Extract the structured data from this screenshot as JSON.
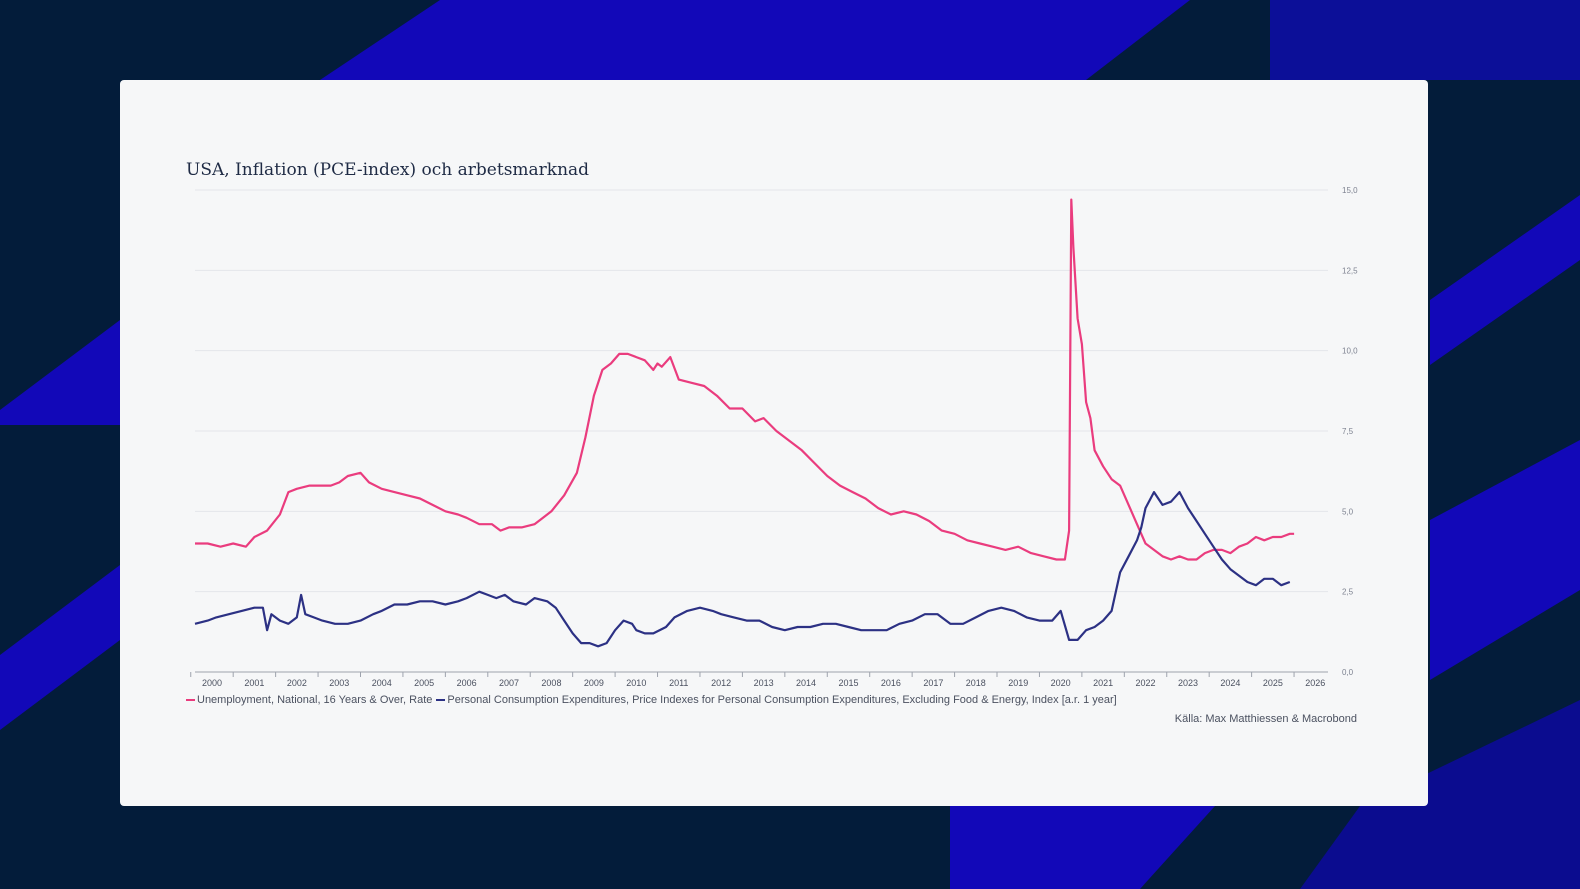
{
  "colors": {
    "background": "#031c3a",
    "accent_blue": "#1208b8",
    "card": "#f6f7f8",
    "unemployment": "#ea3c7e",
    "pce": "#2c3184"
  },
  "chart_data": {
    "type": "line",
    "title": "USA, Inflation (PCE-index) och arbetsmarknad",
    "xlim": [
      1999.6,
      2026.3
    ],
    "ylim": [
      0,
      15
    ],
    "x_ticks": [
      "2000",
      "2001",
      "2002",
      "2003",
      "2004",
      "2005",
      "2006",
      "2007",
      "2008",
      "2009",
      "2010",
      "2011",
      "2012",
      "2013",
      "2014",
      "2015",
      "2016",
      "2017",
      "2018",
      "2019",
      "2020",
      "2021",
      "2022",
      "2023",
      "2024",
      "2025",
      "2026"
    ],
    "y_ticks": [
      "0,0",
      "2,5",
      "5,0",
      "7,5",
      "10,0",
      "12,5",
      "15,0"
    ],
    "series": [
      {
        "name": "Unemployment, National, 16 Years & Over, Rate",
        "color": "#ea3c7e",
        "x": [
          1999.6,
          1999.9,
          2000.2,
          2000.5,
          2000.8,
          2001.0,
          2001.3,
          2001.6,
          2001.8,
          2002.0,
          2002.3,
          2002.6,
          2002.8,
          2003.0,
          2003.2,
          2003.5,
          2003.7,
          2004.0,
          2004.3,
          2004.6,
          2004.9,
          2005.2,
          2005.5,
          2005.8,
          2006.0,
          2006.3,
          2006.6,
          2006.8,
          2007.0,
          2007.3,
          2007.6,
          2007.8,
          2008.0,
          2008.3,
          2008.6,
          2008.8,
          2009.0,
          2009.2,
          2009.4,
          2009.6,
          2009.8,
          2010.0,
          2010.2,
          2010.4,
          2010.5,
          2010.6,
          2010.8,
          2011.0,
          2011.3,
          2011.6,
          2011.9,
          2012.2,
          2012.5,
          2012.8,
          2013.0,
          2013.3,
          2013.6,
          2013.9,
          2014.2,
          2014.5,
          2014.8,
          2015.1,
          2015.4,
          2015.7,
          2016.0,
          2016.3,
          2016.6,
          2016.9,
          2017.2,
          2017.5,
          2017.8,
          2018.1,
          2018.4,
          2018.7,
          2019.0,
          2019.3,
          2019.6,
          2019.9,
          2020.1,
          2020.2,
          2020.25,
          2020.3,
          2020.4,
          2020.5,
          2020.6,
          2020.7,
          2020.8,
          2021.0,
          2021.2,
          2021.4,
          2021.6,
          2021.8,
          2022.0,
          2022.2,
          2022.4,
          2022.6,
          2022.8,
          2023.0,
          2023.2,
          2023.4,
          2023.6,
          2023.8,
          2024.0,
          2024.2,
          2024.4,
          2024.6,
          2024.8,
          2025.0,
          2025.2,
          2025.4,
          2025.5
        ],
        "values": [
          4.0,
          4.0,
          3.9,
          4.0,
          3.9,
          4.2,
          4.4,
          4.9,
          5.6,
          5.7,
          5.8,
          5.8,
          5.8,
          5.9,
          6.1,
          6.2,
          5.9,
          5.7,
          5.6,
          5.5,
          5.4,
          5.2,
          5.0,
          4.9,
          4.8,
          4.6,
          4.6,
          4.4,
          4.5,
          4.5,
          4.6,
          4.8,
          5.0,
          5.5,
          6.2,
          7.3,
          8.6,
          9.4,
          9.6,
          9.9,
          9.9,
          9.8,
          9.7,
          9.4,
          9.6,
          9.5,
          9.8,
          9.1,
          9.0,
          8.9,
          8.6,
          8.2,
          8.2,
          7.8,
          7.9,
          7.5,
          7.2,
          6.9,
          6.5,
          6.1,
          5.8,
          5.6,
          5.4,
          5.1,
          4.9,
          5.0,
          4.9,
          4.7,
          4.4,
          4.3,
          4.1,
          4.0,
          3.9,
          3.8,
          3.9,
          3.7,
          3.6,
          3.5,
          3.5,
          4.4,
          14.7,
          13.2,
          11.0,
          10.2,
          8.4,
          7.9,
          6.9,
          6.4,
          6.0,
          5.8,
          5.2,
          4.6,
          4.0,
          3.8,
          3.6,
          3.5,
          3.6,
          3.5,
          3.5,
          3.7,
          3.8,
          3.8,
          3.7,
          3.9,
          4.0,
          4.2,
          4.1,
          4.2,
          4.2,
          4.3,
          4.3
        ],
        "label": "Unemployment, National, 16 Years & Over, Rate"
      },
      {
        "name": "Personal Consumption Expenditures, Price Indexes for Personal Consumption Expenditures, Excluding Food & Energy, Index [a.r. 1 year]",
        "color": "#2c3184",
        "x": [
          1999.6,
          1999.9,
          2000.1,
          2000.4,
          2000.7,
          2001.0,
          2001.2,
          2001.3,
          2001.4,
          2001.6,
          2001.8,
          2002.0,
          2002.1,
          2002.2,
          2002.4,
          2002.6,
          2002.9,
          2003.2,
          2003.5,
          2003.8,
          2004.0,
          2004.3,
          2004.6,
          2004.9,
          2005.2,
          2005.5,
          2005.8,
          2006.0,
          2006.3,
          2006.5,
          2006.7,
          2006.9,
          2007.1,
          2007.4,
          2007.6,
          2007.9,
          2008.1,
          2008.3,
          2008.5,
          2008.7,
          2008.9,
          2009.1,
          2009.3,
          2009.5,
          2009.7,
          2009.9,
          2010.0,
          2010.2,
          2010.4,
          2010.7,
          2010.9,
          2011.2,
          2011.5,
          2011.8,
          2012.0,
          2012.3,
          2012.6,
          2012.9,
          2013.2,
          2013.5,
          2013.8,
          2014.1,
          2014.4,
          2014.7,
          2015.0,
          2015.3,
          2015.6,
          2015.9,
          2016.2,
          2016.5,
          2016.8,
          2017.1,
          2017.4,
          2017.7,
          2018.0,
          2018.3,
          2018.6,
          2018.9,
          2019.2,
          2019.5,
          2019.8,
          2020.0,
          2020.2,
          2020.4,
          2020.6,
          2020.8,
          2021.0,
          2021.2,
          2021.4,
          2021.6,
          2021.8,
          2021.9,
          2022.0,
          2022.2,
          2022.4,
          2022.6,
          2022.8,
          2023.0,
          2023.2,
          2023.4,
          2023.6,
          2023.8,
          2024.0,
          2024.2,
          2024.4,
          2024.6,
          2024.8,
          2025.0,
          2025.2,
          2025.4
        ],
        "values": [
          1.5,
          1.6,
          1.7,
          1.8,
          1.9,
          2.0,
          2.0,
          1.3,
          1.8,
          1.6,
          1.5,
          1.7,
          2.4,
          1.8,
          1.7,
          1.6,
          1.5,
          1.5,
          1.6,
          1.8,
          1.9,
          2.1,
          2.1,
          2.2,
          2.2,
          2.1,
          2.2,
          2.3,
          2.5,
          2.4,
          2.3,
          2.4,
          2.2,
          2.1,
          2.3,
          2.2,
          2.0,
          1.6,
          1.2,
          0.9,
          0.9,
          0.8,
          0.9,
          1.3,
          1.6,
          1.5,
          1.3,
          1.2,
          1.2,
          1.4,
          1.7,
          1.9,
          2.0,
          1.9,
          1.8,
          1.7,
          1.6,
          1.6,
          1.4,
          1.3,
          1.4,
          1.4,
          1.5,
          1.5,
          1.4,
          1.3,
          1.3,
          1.3,
          1.5,
          1.6,
          1.8,
          1.8,
          1.5,
          1.5,
          1.7,
          1.9,
          2.0,
          1.9,
          1.7,
          1.6,
          1.6,
          1.9,
          1.0,
          1.0,
          1.3,
          1.4,
          1.6,
          1.9,
          3.1,
          3.6,
          4.1,
          4.5,
          5.1,
          5.6,
          5.2,
          5.3,
          5.6,
          5.1,
          4.7,
          4.3,
          3.9,
          3.5,
          3.2,
          3.0,
          2.8,
          2.7,
          2.9,
          2.9,
          2.7,
          2.8
        ]
      }
    ],
    "legend_position": "bottom-left",
    "source": "Källa: Max Matthiessen & Macrobond"
  }
}
